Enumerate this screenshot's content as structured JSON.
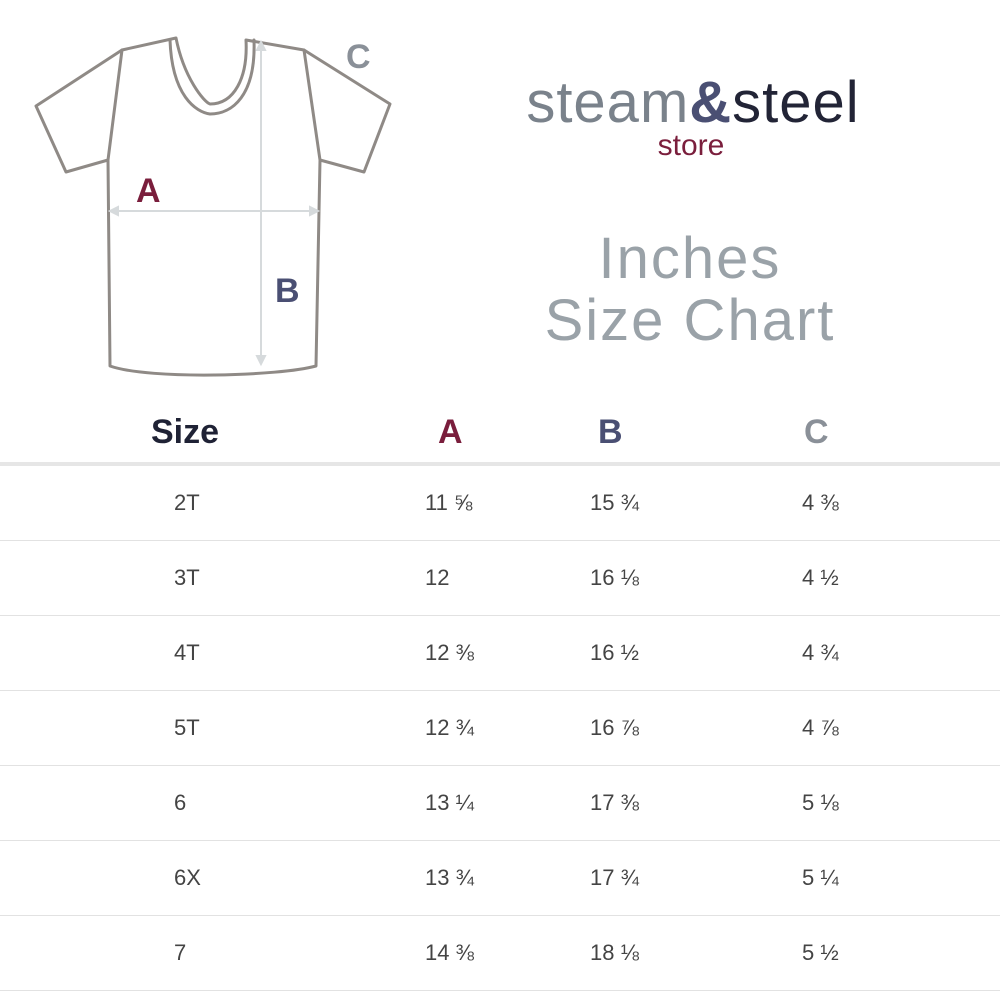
{
  "diagram": {
    "label_a": "A",
    "label_b": "B",
    "label_c": "C"
  },
  "brand": {
    "steam": "steam",
    "amp": "&",
    "steel": "steel",
    "store": "store"
  },
  "title": {
    "line1": "Inches",
    "line2": "Size Chart"
  },
  "colors": {
    "a": "#7a1e3c",
    "b": "#4a4f73",
    "c": "#8a9098",
    "heading": "#1f2235"
  },
  "table": {
    "headers": {
      "size": "Size",
      "a": "A",
      "b": "B",
      "c": "C"
    },
    "rows": [
      {
        "size": "2T",
        "a": "11 ⅝",
        "b": "15 ¾",
        "c": "4 ⅜"
      },
      {
        "size": "3T",
        "a": "12",
        "b": "16 ⅛",
        "c": "4 ½"
      },
      {
        "size": "4T",
        "a": "12 ⅜",
        "b": "16 ½",
        "c": "4 ¾"
      },
      {
        "size": "5T",
        "a": "12 ¾",
        "b": "16 ⅞",
        "c": "4 ⅞"
      },
      {
        "size": "6",
        "a": "13 ¼",
        "b": "17 ⅜",
        "c": "5 ⅛"
      },
      {
        "size": "6X",
        "a": "13 ¾",
        "b": "17 ¾",
        "c": "5 ¼"
      },
      {
        "size": "7",
        "a": "14 ⅜",
        "b": "18 ⅛",
        "c": "5 ½"
      }
    ]
  }
}
